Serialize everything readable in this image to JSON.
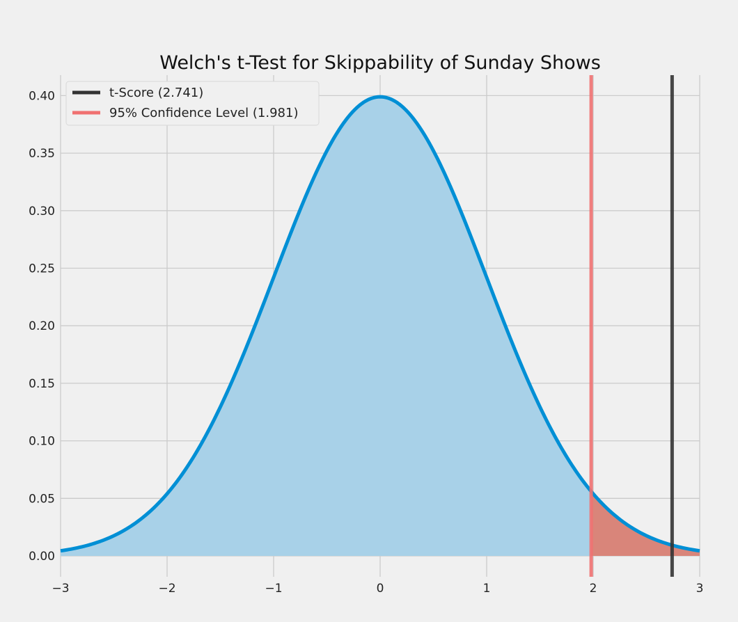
{
  "chart_data": {
    "type": "line",
    "title": "Welch's t-Test for Skippability of Sunday Shows",
    "xlabel": "",
    "ylabel": "",
    "xlim": [
      -3,
      3
    ],
    "ylim": [
      0,
      0.4
    ],
    "x_ticks": [
      -3,
      -2,
      -1,
      0,
      1,
      2,
      3
    ],
    "x_tick_labels": [
      "−3",
      "−2",
      "−1",
      "0",
      "1",
      "2",
      "3"
    ],
    "y_ticks": [
      0,
      0.05,
      0.1,
      0.15,
      0.2,
      0.25,
      0.3,
      0.35,
      0.4
    ],
    "y_tick_labels": [
      "0.00",
      "0.05",
      "0.10",
      "0.15",
      "0.20",
      "0.25",
      "0.30",
      "0.35",
      "0.40"
    ],
    "grid": true,
    "legend_position": "top-left",
    "curve": {
      "x": [
        -3,
        -2.75,
        -2.5,
        -2.25,
        -2,
        -1.75,
        -1.5,
        -1.25,
        -1,
        -0.75,
        -0.5,
        -0.25,
        0,
        0.25,
        0.5,
        0.75,
        1,
        1.25,
        1.5,
        1.75,
        2,
        2.25,
        2.5,
        2.75,
        3
      ],
      "y": [
        0.0044,
        0.0091,
        0.0175,
        0.0317,
        0.054,
        0.0863,
        0.1295,
        0.1826,
        0.242,
        0.3011,
        0.3521,
        0.3867,
        0.3989,
        0.3867,
        0.3521,
        0.3011,
        0.242,
        0.1826,
        0.1295,
        0.0863,
        0.054,
        0.0317,
        0.0175,
        0.0091,
        0.0044
      ],
      "color": "#008fd5",
      "fill_color": "#a8d1e8"
    },
    "rejection_region": {
      "from": 1.981,
      "to": 3,
      "color": "#d9857a"
    },
    "vlines": [
      {
        "name": "t-Score (2.741)",
        "x": 2.741,
        "color": "#333333"
      },
      {
        "name": "95% Confidence Level (1.981)",
        "x": 1.981,
        "color": "#f07171"
      }
    ]
  }
}
